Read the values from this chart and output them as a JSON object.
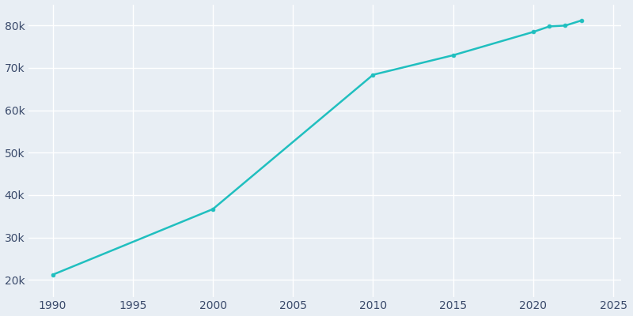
{
  "years": [
    1990,
    2000,
    2010,
    2015,
    2020,
    2021,
    2022,
    2023
  ],
  "population": [
    21183,
    36676,
    68386,
    73000,
    78500,
    79800,
    80000,
    81200
  ],
  "line_color": "#20BFBF",
  "marker": "o",
  "marker_size": 3.5,
  "line_width": 1.8,
  "bg_color": "#E8EEF4",
  "fig_bg_color": "#E8EEF4",
  "grid_color": "#FFFFFF",
  "tick_color": "#3A4A6B",
  "xlim": [
    1988.5,
    2025.5
  ],
  "ylim": [
    16000,
    85000
  ],
  "xticks": [
    1990,
    1995,
    2000,
    2005,
    2010,
    2015,
    2020,
    2025
  ],
  "yticks": [
    20000,
    30000,
    40000,
    50000,
    60000,
    70000,
    80000
  ],
  "ytick_labels": [
    "20k",
    "30k",
    "40k",
    "50k",
    "60k",
    "70k",
    "80k"
  ],
  "figsize": [
    8.0,
    4.0
  ],
  "dpi": 100
}
